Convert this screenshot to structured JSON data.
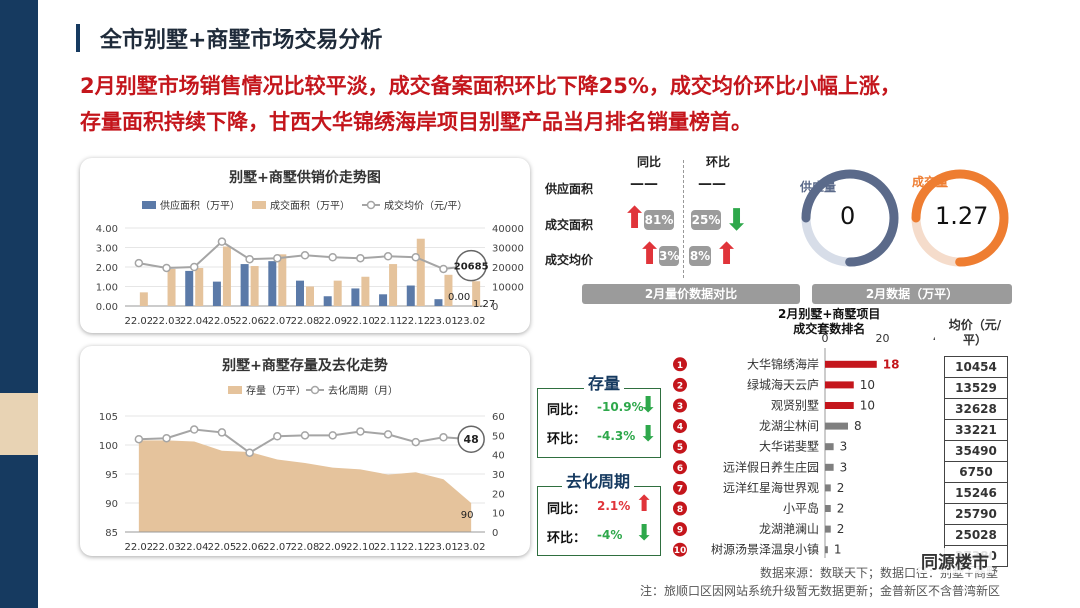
{
  "page": {
    "title": "全市别墅+商墅市场交易分析",
    "headline_1": "2月别墅市场销售情况比较平淡，成交备案面积环比下降25%，成交均价环比小幅上涨，",
    "headline_2": "存量面积持续下降，甘西大华锦绣海岸项目别墅产品当月排名销量榜首。"
  },
  "colors": {
    "navy": "#163a60",
    "supply": "#5b7aa8",
    "deal": "#e5c39c",
    "price_line": "#a5a5a5",
    "red": "#c4161c",
    "up": "#e0343a",
    "down": "#2ea84b",
    "gray": "#9b9b9b"
  },
  "chart_data": [
    {
      "type": "bar",
      "title": "别墅+商墅供销价走势图",
      "categories": [
        "22.02",
        "22.03",
        "22.04",
        "22.05",
        "22.06",
        "22.07",
        "22.08",
        "22.09",
        "22.10",
        "22.11",
        "22.12",
        "23.01",
        "23.02"
      ],
      "series": [
        {
          "name": "供应面积（万平）",
          "axis": "left",
          "values": [
            0,
            0,
            1.8,
            1.25,
            2.15,
            2.3,
            1.3,
            0.5,
            0.9,
            0.6,
            1.05,
            0.35,
            0
          ]
        },
        {
          "name": "成交面积（万平）",
          "axis": "left",
          "values": [
            0.7,
            1.9,
            1.95,
            3.05,
            2.05,
            2.65,
            1.0,
            1.3,
            1.5,
            2.15,
            3.45,
            1.6,
            1.27
          ]
        },
        {
          "name": "成交均价（元/平）",
          "axis": "right",
          "type": "line",
          "values": [
            22000,
            19500,
            20000,
            33000,
            24000,
            24500,
            26000,
            25000,
            24500,
            25500,
            25000,
            19000,
            20685
          ]
        }
      ],
      "ylim": [
        0,
        4
      ],
      "y_ticks": [
        "0.00",
        "1.00",
        "2.00",
        "3.00",
        "4.00"
      ],
      "y2lim": [
        0,
        40000
      ],
      "y2_ticks": [
        "0",
        "10000",
        "20000",
        "30000",
        "40000"
      ],
      "annotations": {
        "price_last": "20685",
        "supply_last": "0.00",
        "deal_last": "1.27"
      }
    },
    {
      "type": "area",
      "title": "别墅+商墅存量及去化走势",
      "categories": [
        "22.02",
        "22.03",
        "22.04",
        "22.05",
        "22.06",
        "22.07",
        "22.08",
        "22.09",
        "22.10",
        "22.11",
        "22.12",
        "23.01",
        "23.02"
      ],
      "series": [
        {
          "name": "存量（万平）",
          "axis": "left",
          "values": [
            100.8,
            100.8,
            100.6,
            99.0,
            98.8,
            97.5,
            96.9,
            96.1,
            95.8,
            94.9,
            95.3,
            94.1,
            90
          ]
        },
        {
          "name": "去化周期（月）",
          "axis": "right",
          "type": "line",
          "values": [
            48,
            48.5,
            53,
            51.5,
            41,
            49.5,
            50,
            50,
            52,
            50.5,
            46.5,
            49,
            48
          ]
        }
      ],
      "ylim": [
        85,
        105
      ],
      "y_ticks": [
        "85",
        "90",
        "95",
        "100",
        "105"
      ],
      "y2lim": [
        0,
        60
      ],
      "y2_ticks": [
        "0",
        "10",
        "20",
        "30",
        "40",
        "50",
        "60"
      ],
      "annotations": {
        "stock_last": "90",
        "cycle_last": "48"
      }
    },
    {
      "type": "bar",
      "title": "2月别墅+商墅项目成交套数排名",
      "orientation": "horizontal",
      "xlim": [
        0,
        40
      ],
      "x_ticks": [
        "0",
        "20",
        "40"
      ],
      "categories": [
        "大华锦绣海岸",
        "绿城海天云庐",
        "观贤别墅",
        "龙湖尘林间",
        "大华诺斐墅",
        "远洋假日养生庄园",
        "远洋红星海世界观",
        "小平岛",
        "龙湖滟澜山",
        "树源汤景泽温泉小镇"
      ],
      "values": [
        18,
        10,
        10,
        8,
        3,
        3,
        2,
        2,
        2,
        1
      ],
      "ranks": [
        "1",
        "2",
        "3",
        "4",
        "5",
        "6",
        "7",
        "8",
        "9",
        "10"
      ],
      "prices_header": "均价（元/平）",
      "prices": [
        "10454",
        "13529",
        "32628",
        "33221",
        "35490",
        "6750",
        "15246",
        "25790",
        "25028",
        "27380"
      ]
    }
  ],
  "compare": {
    "col_yoy": "同比",
    "col_mom": "环比",
    "rows": [
      {
        "label": "供应面积",
        "yoy": "——",
        "mom": "——"
      },
      {
        "label": "成交面积",
        "yoy": "81%",
        "mom": "25%"
      },
      {
        "label": "成交均价",
        "yoy": "3%",
        "mom": "8%"
      }
    ],
    "footer": "2月量价数据对比"
  },
  "gauges": {
    "supply_label": "供应量",
    "supply_value": "0",
    "deal_label": "成交量",
    "deal_value": "1.27",
    "deal_fraction": 0.75,
    "supply_fraction": 0.75,
    "footer": "2月数据（万平）"
  },
  "stock_box": {
    "title": "存量",
    "yoy_label": "同比：",
    "yoy_value": "-10.9%",
    "mom_label": "环比：",
    "mom_value": "-4.3%"
  },
  "cycle_box": {
    "title": "去化周期",
    "yoy_label": "同比：",
    "yoy_value": "2.1%",
    "mom_label": "环比：",
    "mom_value": "-4%"
  },
  "ranking_title": "2月别墅+商墅项目\n成交套数排名",
  "footer": {
    "source": "数据来源：数联天下；数据口径：别墅+商墅",
    "note": "注：旅顺口区因网站系统升级暂无数据更新；金普新区不含普湾新区",
    "brand": "同源楼市"
  }
}
